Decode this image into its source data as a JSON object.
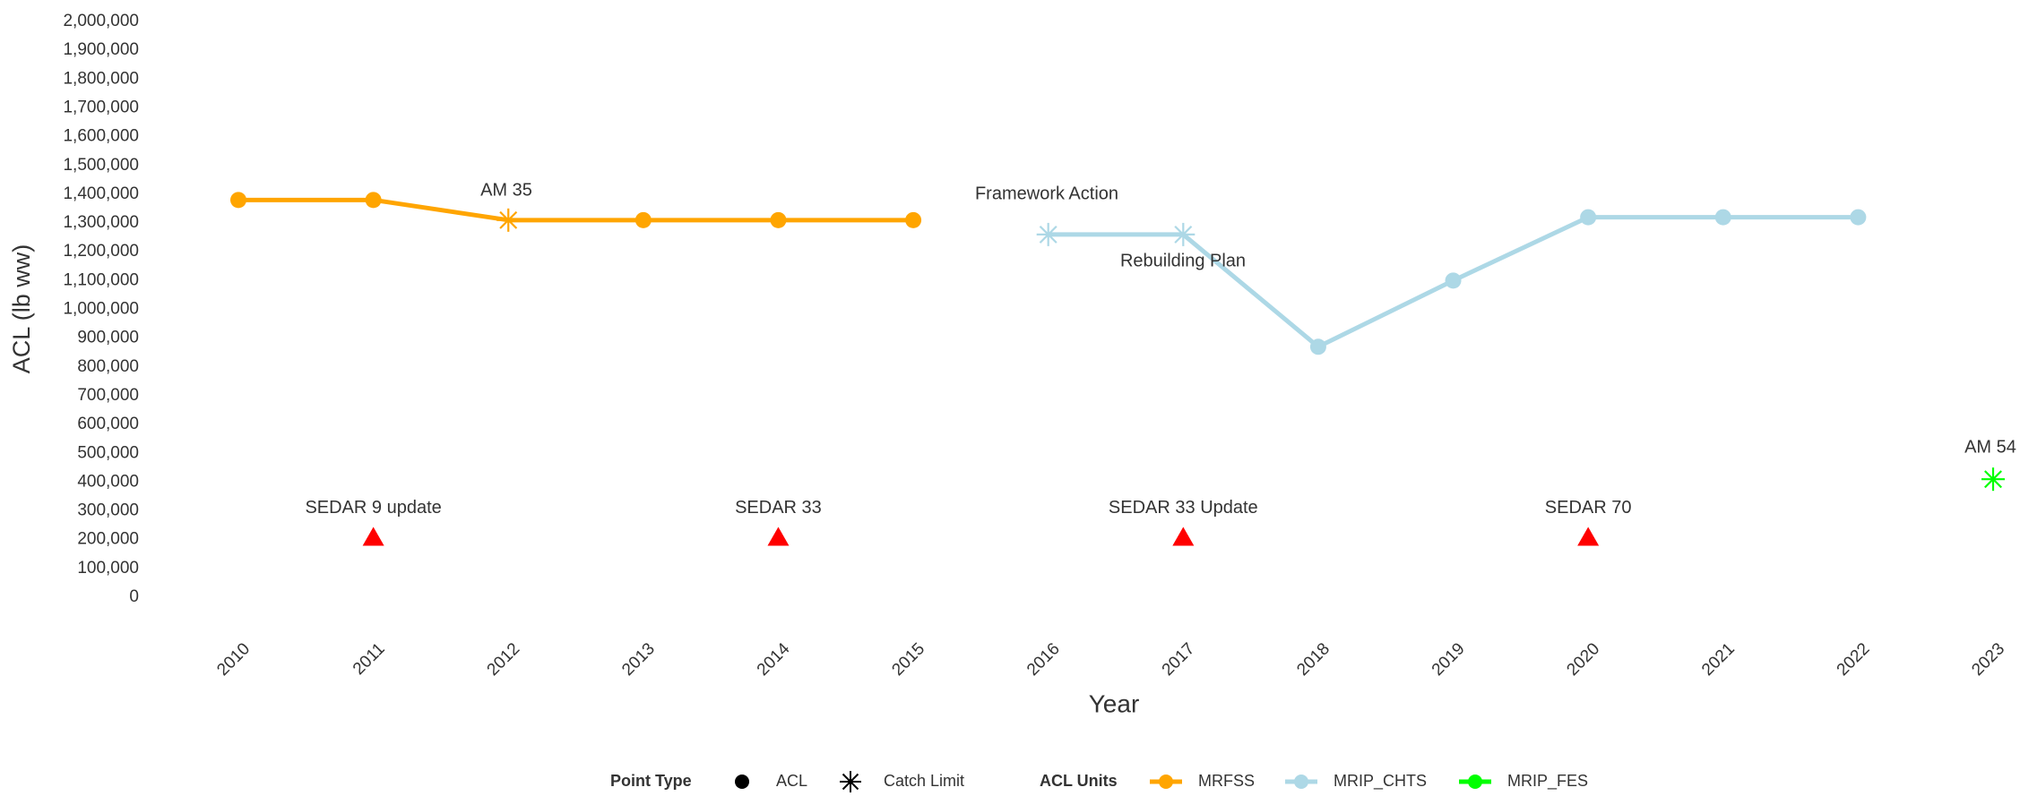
{
  "chart_data": {
    "type": "line",
    "ylabel": "ACL (lb ww)",
    "xlabel": "Year",
    "x": [
      2010,
      2011,
      2012,
      2013,
      2014,
      2015,
      2016,
      2017,
      2018,
      2019,
      2020,
      2021,
      2022,
      2023
    ],
    "xlim": [
      2010,
      2023
    ],
    "xticks": [
      2010,
      2011,
      2012,
      2013,
      2014,
      2015,
      2016,
      2017,
      2018,
      2019,
      2020,
      2021,
      2022,
      2023
    ],
    "ylim": [
      0,
      2000000
    ],
    "yticks": [
      0,
      {
        "value": 100000,
        "label": "100,000"
      },
      {
        "value": 200000,
        "label": "200,000"
      },
      {
        "value": 300000,
        "label": "300,000"
      },
      {
        "value": 400000,
        "label": "400,000"
      },
      {
        "value": 500000,
        "label": "500,000"
      },
      {
        "value": 600000,
        "label": "600,000"
      },
      {
        "value": 700000,
        "label": "700,000"
      },
      {
        "value": 800000,
        "label": "800,000"
      },
      {
        "value": 900000,
        "label": "900,000"
      },
      {
        "value": 1000000,
        "label": "1,000,000"
      },
      {
        "value": 1100000,
        "label": "1,100,000"
      },
      {
        "value": 1200000,
        "label": "1,200,000"
      },
      {
        "value": 1300000,
        "label": "1,300,000"
      },
      {
        "value": 1400000,
        "label": "1,400,000"
      },
      {
        "value": 1500000,
        "label": "1,500,000"
      },
      {
        "value": 1600000,
        "label": "1,600,000"
      },
      {
        "value": 1700000,
        "label": "1,700,000"
      },
      {
        "value": 1800000,
        "label": "1,800,000"
      },
      {
        "value": 1900000,
        "label": "1,900,000"
      },
      {
        "value": 2000000,
        "label": "2,000,000"
      }
    ],
    "grid": false,
    "series": [
      {
        "name": "MRFSS",
        "color": "#ffa500",
        "values": [
          1380000,
          1380000,
          1310000,
          1310000,
          1310000,
          1310000,
          null,
          null,
          null,
          null,
          null,
          null,
          null,
          null
        ],
        "shapes": [
          "circle",
          "circle",
          "asterisk",
          "circle",
          "circle",
          "circle",
          null,
          null,
          null,
          null,
          null,
          null,
          null,
          null
        ]
      },
      {
        "name": "MRIP_CHTS",
        "color": "#add8e6",
        "values": [
          null,
          null,
          null,
          null,
          null,
          null,
          1260000,
          1260000,
          870000,
          1100000,
          1320000,
          1320000,
          1320000,
          null
        ],
        "shapes": [
          null,
          null,
          null,
          null,
          null,
          null,
          "asterisk",
          "asterisk",
          "circle",
          "circle",
          "circle",
          "circle",
          "circle",
          null
        ]
      },
      {
        "name": "MRIP_FES",
        "color": "#00ff00",
        "values": [
          null,
          null,
          null,
          null,
          null,
          null,
          null,
          null,
          null,
          null,
          null,
          null,
          null,
          410000
        ],
        "shapes": [
          null,
          null,
          null,
          null,
          null,
          null,
          null,
          null,
          null,
          null,
          null,
          null,
          null,
          "asterisk"
        ]
      }
    ],
    "annotations": [
      "AM 35",
      "Framework Action",
      "Rebuilding Plan",
      "AM 54"
    ],
    "assessments": {
      "color": "#ff0000",
      "x": [
        2011,
        2014,
        2017,
        2020
      ],
      "values": [
        210000,
        210000,
        210000,
        210000
      ],
      "labels": [
        "SEDAR 9 update",
        "SEDAR 33",
        "SEDAR 33 Update",
        "SEDAR 70"
      ]
    },
    "legend": {
      "point_title": "Point Type",
      "point_items": [
        "ACL",
        "Catch Limit"
      ],
      "units_title": "ACL Units"
    }
  }
}
